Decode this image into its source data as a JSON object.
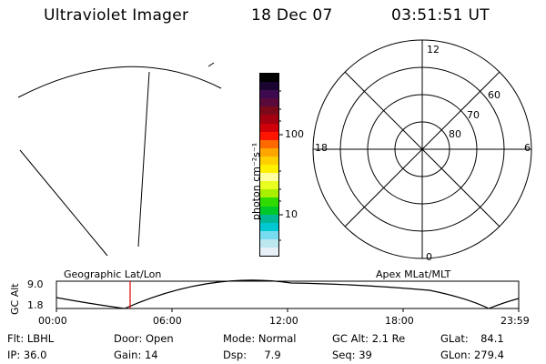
{
  "header": {
    "title": "Ultraviolet Imager",
    "date": "18 Dec 07",
    "time": "03:51:51 UT"
  },
  "colorbar": {
    "unit_label": "photon cm⁻²s⁻¹",
    "ticks": [
      "100",
      "10"
    ],
    "colors": [
      "#000000",
      "#1a0530",
      "#3d0a50",
      "#5a0a3a",
      "#7a0a1a",
      "#a30010",
      "#d0000a",
      "#ff1500",
      "#ff6a00",
      "#ffa500",
      "#ffcf00",
      "#fff000",
      "#ffffa0",
      "#e8ff20",
      "#a8f000",
      "#30dc00",
      "#00c82a",
      "#00b896",
      "#00c8d2",
      "#78dcf0",
      "#bce6f0",
      "#e6f0f6"
    ]
  },
  "polar": {
    "mlt_labels": [
      "12",
      "18",
      "6",
      "0"
    ],
    "mlat_labels": [
      "60",
      "70",
      "80"
    ]
  },
  "altitude_plot": {
    "left_label": "Geographic Lat/Lon",
    "right_label": "Apex MLat/MLT",
    "axis_title": "GC Alt",
    "y_ticks": [
      "9.0",
      "1.8"
    ],
    "x_ticks": [
      "00:00",
      "06:00",
      "12:00",
      "18:00",
      "23:59"
    ],
    "current_time_marker": "03:51:51"
  },
  "info": {
    "filter": {
      "label": "Flt:",
      "value": "LBHL"
    },
    "ip": {
      "label": "IP:",
      "value": "36.0"
    },
    "door": {
      "label": "Door:",
      "value": "Open"
    },
    "gain": {
      "label": "Gain:",
      "value": "14"
    },
    "mode": {
      "label": "Mode:",
      "value": "Normal"
    },
    "dsp": {
      "label": "Dsp:",
      "value": "7.9"
    },
    "gc_alt": {
      "label": "GC Alt:",
      "value": "2.1 Re"
    },
    "seq": {
      "label": "Seq:",
      "value": "39"
    },
    "glat": {
      "label": "GLat:",
      "value": "84.1"
    },
    "glon": {
      "label": "GLon:",
      "value": "279.4"
    }
  }
}
